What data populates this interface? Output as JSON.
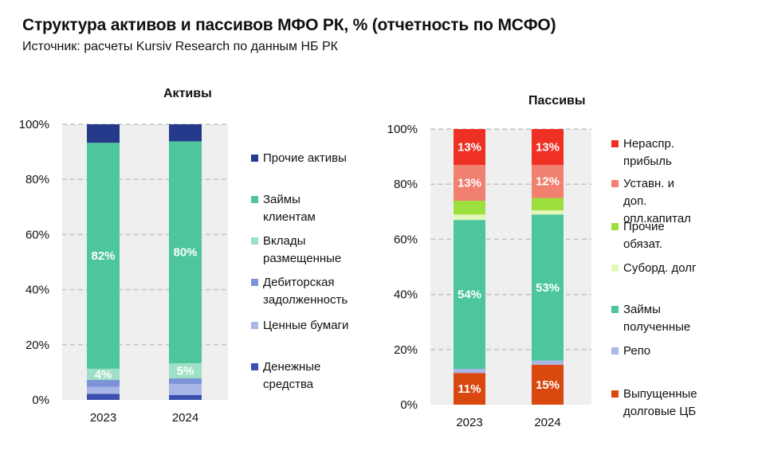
{
  "title": "Структура активов и пассивов МФО РК, % (отчетность по МСФО)",
  "subtitle": "Источник: расчеты Kursiv Research по данным НБ РК",
  "chart_data": [
    {
      "type": "bar",
      "stacked": true,
      "title": "Активы",
      "categories": [
        "2023",
        "2024"
      ],
      "ylim": [
        0,
        100
      ],
      "yticks": [
        "0%",
        "20%",
        "40%",
        "60%",
        "80%",
        "100%"
      ],
      "grid": true,
      "legend_position": "right",
      "series": [
        {
          "name": "Денежные средства",
          "values": [
            2.2,
            1.8
          ],
          "color": "#3a4fb0"
        },
        {
          "name": "Ценные бумаги",
          "values": [
            2.5,
            4.0
          ],
          "color": "#a9b6e8"
        },
        {
          "name": "Дебиторская задолженность",
          "values": [
            2.6,
            2.0
          ],
          "color": "#7d93d8"
        },
        {
          "name": "Вклады размещенные",
          "values": [
            4.0,
            5.5
          ],
          "color": "#9ee0c6",
          "label": [
            "4%",
            "5%"
          ]
        },
        {
          "name": "Займы клиентам",
          "values": [
            82.0,
            80.5
          ],
          "color": "#4dc69c",
          "label": [
            "82%",
            "80%"
          ]
        },
        {
          "name": "Прочие активы",
          "values": [
            6.7,
            6.2
          ],
          "color": "#253a8a"
        }
      ]
    },
    {
      "type": "bar",
      "stacked": true,
      "title": "Пассивы",
      "categories": [
        "2023",
        "2024"
      ],
      "ylim": [
        0,
        100
      ],
      "yticks": [
        "0%",
        "20%",
        "40%",
        "60%",
        "80%",
        "100%"
      ],
      "grid": true,
      "legend_position": "right",
      "series": [
        {
          "name": "Выпущенные долговые ЦБ",
          "values": [
            11.5,
            14.5
          ],
          "color": "#d9480f",
          "label": [
            "11%",
            "15%"
          ]
        },
        {
          "name": "Репо",
          "values": [
            1.5,
            1.5
          ],
          "color": "#a9b6e8"
        },
        {
          "name": "Займы полученные",
          "values": [
            54.0,
            53.0
          ],
          "color": "#4dc69c",
          "label": [
            "54%",
            "53%"
          ]
        },
        {
          "name": "Суборд. долг",
          "values": [
            2.0,
            1.5
          ],
          "color": "#e2f7b8"
        },
        {
          "name": "Прочие обязат.",
          "values": [
            5.0,
            4.5
          ],
          "color": "#9be03c"
        },
        {
          "name": "Уставн. и доп. опл.капитал",
          "values": [
            13.0,
            12.0
          ],
          "color": "#f08070",
          "label": [
            "13%",
            "12%"
          ]
        },
        {
          "name": "Нераспр. прибыль",
          "values": [
            13.0,
            13.0
          ],
          "color": "#ee3124",
          "label": [
            "13%",
            "13%"
          ]
        }
      ]
    }
  ]
}
